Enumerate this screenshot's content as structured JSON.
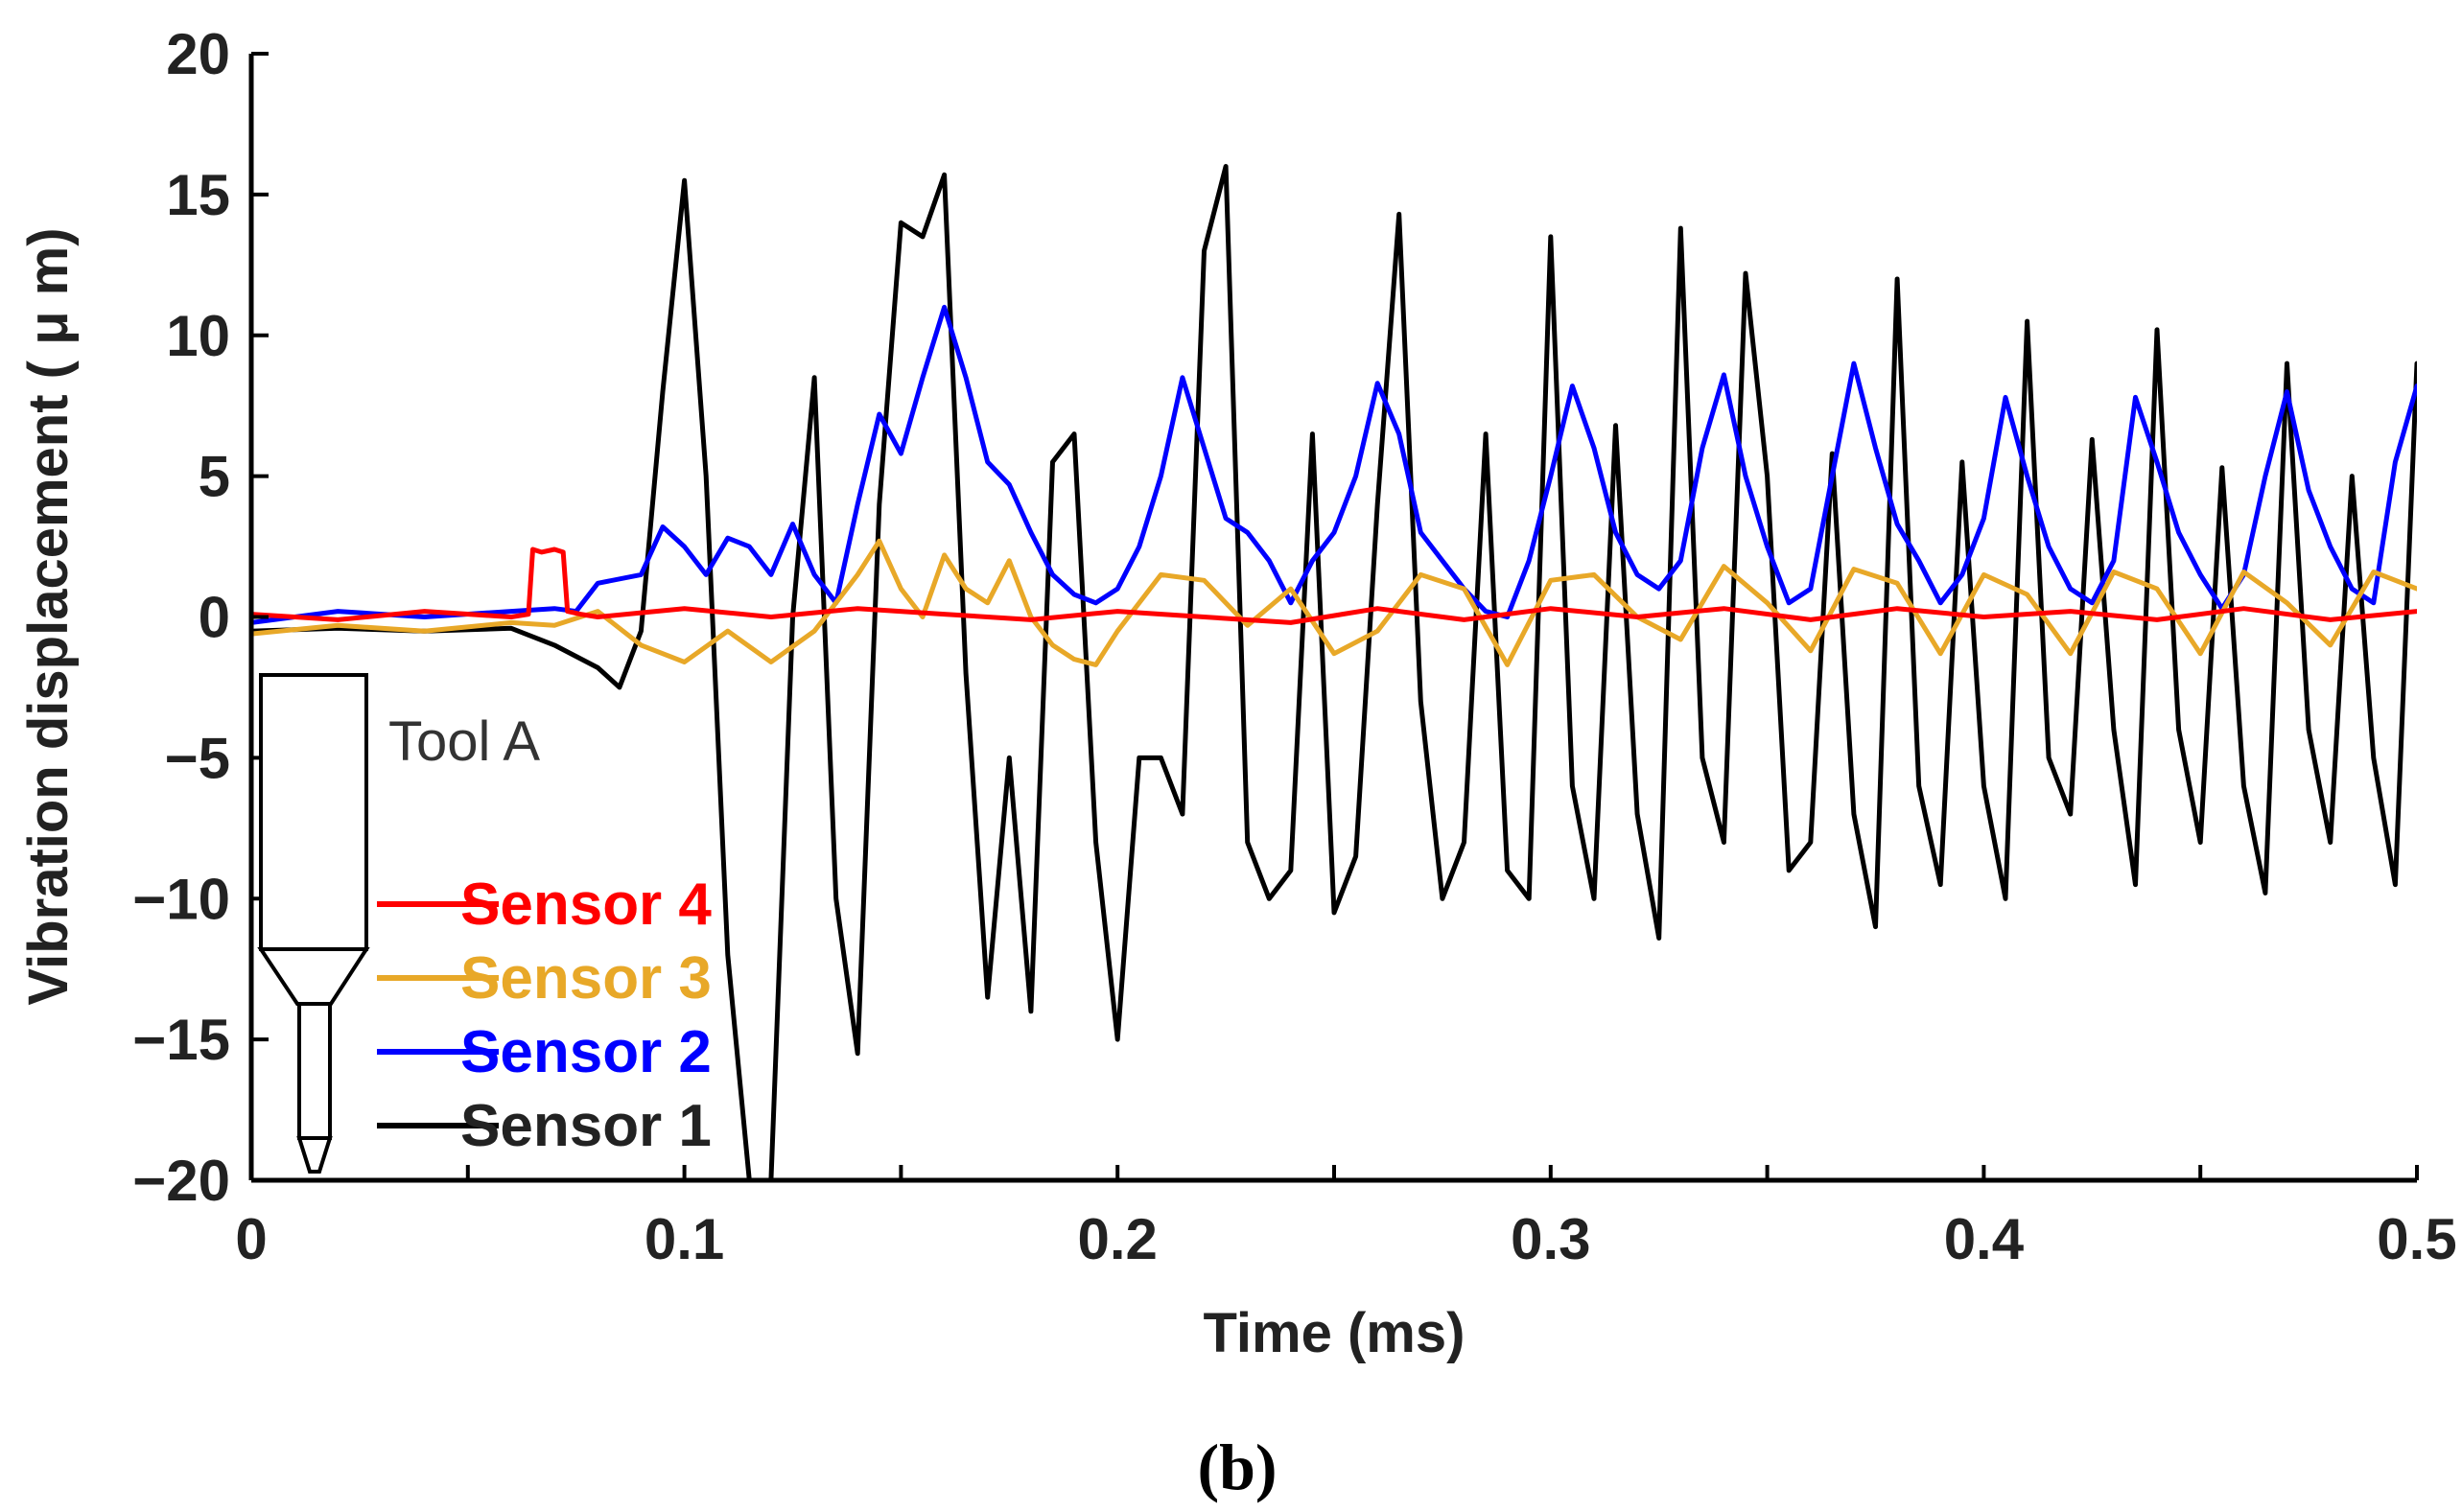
{
  "chart_data": {
    "type": "line",
    "title": "",
    "caption": "(b)",
    "xlabel": "Time (ms)",
    "ylabel": "Vibration displacement ( μ m)",
    "xlim": [
      0,
      0.5
    ],
    "ylim": [
      -20,
      20
    ],
    "x_ticks": [
      0,
      0.1,
      0.2,
      0.3,
      0.4,
      0.5
    ],
    "x_tick_labels": [
      "0",
      "0.1",
      "0.2",
      "0.3",
      "0.4",
      "0.5"
    ],
    "y_ticks": [
      -20,
      -15,
      -10,
      -5,
      0,
      5,
      10,
      15,
      20
    ],
    "y_tick_labels": [
      "−20",
      "−15",
      "−10",
      "−5",
      "0",
      "5",
      "10",
      "15",
      "20"
    ],
    "annotation": "Tool A",
    "legend_position": "bottom-left",
    "legend": [
      "Sensor 4",
      "Sensor 3",
      "Sensor 2",
      "Sensor 1"
    ],
    "series": [
      {
        "name": "Sensor 1",
        "color": "#000000",
        "x": [
          0,
          0.02,
          0.04,
          0.06,
          0.07,
          0.08,
          0.085,
          0.09,
          0.095,
          0.1,
          0.105,
          0.11,
          0.115,
          0.12,
          0.125,
          0.13,
          0.135,
          0.14,
          0.145,
          0.15,
          0.155,
          0.16,
          0.165,
          0.17,
          0.175,
          0.18,
          0.185,
          0.19,
          0.195,
          0.2,
          0.205,
          0.21,
          0.215,
          0.22,
          0.225,
          0.23,
          0.235,
          0.24,
          0.245,
          0.25,
          0.255,
          0.26,
          0.265,
          0.27,
          0.275,
          0.28,
          0.285,
          0.29,
          0.295,
          0.3,
          0.305,
          0.31,
          0.315,
          0.32,
          0.325,
          0.33,
          0.335,
          0.34,
          0.345,
          0.35,
          0.355,
          0.36,
          0.365,
          0.37,
          0.375,
          0.38,
          0.385,
          0.39,
          0.395,
          0.4,
          0.405,
          0.41,
          0.415,
          0.42,
          0.425,
          0.43,
          0.435,
          0.44,
          0.445,
          0.45,
          0.455,
          0.46,
          0.465,
          0.47,
          0.475,
          0.48,
          0.485,
          0.49,
          0.495,
          0.5
        ],
        "values": [
          -0.5,
          -0.4,
          -0.5,
          -0.4,
          -1.0,
          -1.8,
          -2.5,
          -0.5,
          8,
          15.5,
          5,
          -12,
          -20,
          -20,
          0,
          8.5,
          -10,
          -15.5,
          4,
          14,
          13.5,
          15.7,
          -2,
          -13.5,
          -5,
          -14,
          5.5,
          6.5,
          -8,
          -15,
          -5,
          -5,
          -7,
          13,
          16,
          -8,
          -10,
          -9,
          6.5,
          -10.5,
          -8.5,
          4,
          14.3,
          -3,
          -10,
          -8,
          6.5,
          -9,
          -10,
          13.5,
          -6,
          -10,
          6.8,
          -7,
          -11.4,
          13.8,
          -5,
          -8,
          12.2,
          5,
          -9,
          -8,
          5.8,
          -7,
          -11,
          12,
          -6,
          -9.5,
          5.5,
          -6,
          -10,
          10.5,
          -5,
          -7,
          6.3,
          -4,
          -9.5,
          10.2,
          -4,
          -8,
          5.3,
          -6,
          -9.8,
          9,
          -4,
          -8,
          5,
          -5,
          -9.5,
          9
        ]
      },
      {
        "name": "Sensor 2",
        "color": "#0000ff",
        "x": [
          0,
          0.02,
          0.04,
          0.06,
          0.07,
          0.075,
          0.08,
          0.09,
          0.095,
          0.1,
          0.105,
          0.11,
          0.115,
          0.12,
          0.125,
          0.13,
          0.135,
          0.14,
          0.145,
          0.15,
          0.155,
          0.16,
          0.165,
          0.17,
          0.175,
          0.18,
          0.185,
          0.19,
          0.195,
          0.2,
          0.205,
          0.21,
          0.215,
          0.22,
          0.225,
          0.23,
          0.235,
          0.24,
          0.245,
          0.25,
          0.255,
          0.26,
          0.265,
          0.27,
          0.275,
          0.28,
          0.285,
          0.29,
          0.295,
          0.3,
          0.305,
          0.31,
          0.315,
          0.32,
          0.325,
          0.33,
          0.335,
          0.34,
          0.345,
          0.35,
          0.355,
          0.36,
          0.365,
          0.37,
          0.375,
          0.38,
          0.385,
          0.39,
          0.395,
          0.4,
          0.405,
          0.41,
          0.415,
          0.42,
          0.425,
          0.43,
          0.435,
          0.44,
          0.445,
          0.45,
          0.455,
          0.46,
          0.465,
          0.47,
          0.475,
          0.48,
          0.485,
          0.49,
          0.495,
          0.5
        ],
        "values": [
          -0.2,
          0.2,
          0.0,
          0.2,
          0.3,
          0.2,
          1.2,
          1.5,
          3.2,
          2.5,
          1.5,
          2.8,
          2.5,
          1.5,
          3.3,
          1.5,
          0.5,
          4,
          7.2,
          5.8,
          8.5,
          11,
          8.5,
          5.5,
          4.7,
          3,
          1.5,
          0.8,
          0.5,
          1.0,
          2.5,
          5,
          8.5,
          6,
          3.5,
          3.0,
          2.0,
          0.5,
          2,
          3,
          5,
          8.3,
          6.5,
          3,
          2,
          1.0,
          0.2,
          0.0,
          2,
          5,
          8.2,
          6,
          3,
          1.5,
          1.0,
          2,
          6,
          8.6,
          5,
          2.5,
          0.5,
          1,
          5,
          9,
          6,
          3.3,
          2.0,
          0.5,
          1.5,
          3.5,
          7.8,
          5,
          2.5,
          1.0,
          0.5,
          2,
          7.8,
          5.5,
          3,
          1.5,
          0.3,
          1.5,
          5,
          8,
          4.5,
          2.5,
          1.0,
          0.5,
          5.5,
          8.2
        ]
      },
      {
        "name": "Sensor 3",
        "color": "#e8a828",
        "x": [
          0,
          0.02,
          0.04,
          0.06,
          0.07,
          0.08,
          0.09,
          0.1,
          0.11,
          0.12,
          0.13,
          0.14,
          0.145,
          0.15,
          0.155,
          0.16,
          0.165,
          0.17,
          0.175,
          0.18,
          0.185,
          0.19,
          0.195,
          0.2,
          0.21,
          0.22,
          0.23,
          0.24,
          0.25,
          0.26,
          0.27,
          0.28,
          0.29,
          0.3,
          0.31,
          0.32,
          0.33,
          0.34,
          0.35,
          0.36,
          0.37,
          0.38,
          0.39,
          0.4,
          0.41,
          0.42,
          0.43,
          0.44,
          0.45,
          0.46,
          0.47,
          0.48,
          0.49,
          0.5
        ],
        "values": [
          -0.6,
          -0.3,
          -0.5,
          -0.2,
          -0.3,
          0.2,
          -1.0,
          -1.6,
          -0.5,
          -1.6,
          -0.5,
          1.5,
          2.7,
          1.0,
          0.0,
          2.2,
          1.0,
          0.5,
          2.0,
          0.0,
          -1.0,
          -1.5,
          -1.7,
          -0.5,
          1.5,
          1.3,
          -0.3,
          1.0,
          -1.3,
          -0.5,
          1.5,
          1.0,
          -1.7,
          1.3,
          1.5,
          0.0,
          -0.8,
          1.8,
          0.5,
          -1.2,
          1.7,
          1.2,
          -1.3,
          1.5,
          0.8,
          -1.3,
          1.6,
          1.0,
          -1.3,
          1.6,
          0.5,
          -1.0,
          1.6,
          1.0
        ]
      },
      {
        "name": "Sensor 4",
        "color": "#ff0000",
        "x": [
          0,
          0.02,
          0.04,
          0.06,
          0.064,
          0.065,
          0.067,
          0.07,
          0.072,
          0.073,
          0.076,
          0.08,
          0.1,
          0.12,
          0.14,
          0.16,
          0.18,
          0.2,
          0.22,
          0.24,
          0.26,
          0.28,
          0.3,
          0.32,
          0.34,
          0.36,
          0.38,
          0.4,
          0.42,
          0.44,
          0.46,
          0.48,
          0.5
        ],
        "values": [
          0.1,
          -0.1,
          0.2,
          0.0,
          0.1,
          2.4,
          2.3,
          2.4,
          2.3,
          0.2,
          0.1,
          0.0,
          0.3,
          0.0,
          0.3,
          0.1,
          -0.1,
          0.2,
          0.0,
          -0.2,
          0.3,
          -0.1,
          0.3,
          0.0,
          0.3,
          -0.1,
          0.3,
          0.0,
          0.2,
          -0.1,
          0.3,
          -0.1,
          0.2
        ]
      }
    ]
  }
}
